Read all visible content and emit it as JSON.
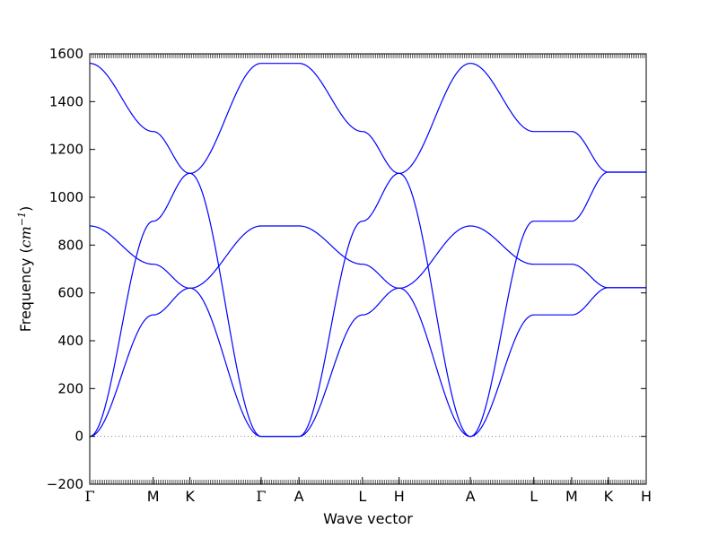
{
  "chart_data": {
    "type": "line",
    "xlabel": "Wave vector",
    "ylabel": "Frequency (cm⁻¹)",
    "ylabel_parts": {
      "prefix": "Frequency (",
      "unit": "cm",
      "sup": "−1",
      "suffix": ")"
    },
    "ylim": [
      -200,
      1600
    ],
    "y_ticks": [
      -200,
      0,
      200,
      400,
      600,
      800,
      1000,
      1200,
      1400,
      1600
    ],
    "y_tick_labels": [
      "−200",
      "0",
      "200",
      "400",
      "600",
      "800",
      "1000",
      "1200",
      "1400",
      "1600"
    ],
    "grid": false,
    "legend": "none",
    "line_color": "#0000ff",
    "zero_line": {
      "y": 0,
      "style": "dotted",
      "color": "#808080"
    },
    "path_points": [
      {
        "label": "Γ",
        "x": 0.0
      },
      {
        "label": "M",
        "x": 0.114
      },
      {
        "label": "K",
        "x": 0.18
      },
      {
        "label": "Γ",
        "x": 0.308
      },
      {
        "label": "A",
        "x": 0.376
      },
      {
        "label": "L",
        "x": 0.49
      },
      {
        "label": "H",
        "x": 0.556
      },
      {
        "label": "A",
        "x": 0.684
      },
      {
        "label": "L",
        "x": 0.798
      },
      {
        "label": "M",
        "x": 0.866
      },
      {
        "label": "K",
        "x": 0.932
      },
      {
        "label": "H",
        "x": 1.0
      }
    ],
    "series": [
      {
        "values": [
          0,
          900,
          1100,
          1560,
          1560,
          1275,
          1100,
          0,
          900,
          900,
          1105,
          1105
        ]
      },
      {
        "values": [
          1560,
          1275,
          1100,
          0,
          0,
          900,
          1100,
          1560,
          1275,
          1275,
          1105,
          1105
        ]
      },
      {
        "values": [
          0,
          508,
          620,
          880,
          880,
          720,
          620,
          0,
          508,
          508,
          622,
          622
        ]
      },
      {
        "values": [
          880,
          720,
          620,
          0,
          0,
          508,
          620,
          880,
          720,
          720,
          622,
          622
        ]
      }
    ]
  }
}
